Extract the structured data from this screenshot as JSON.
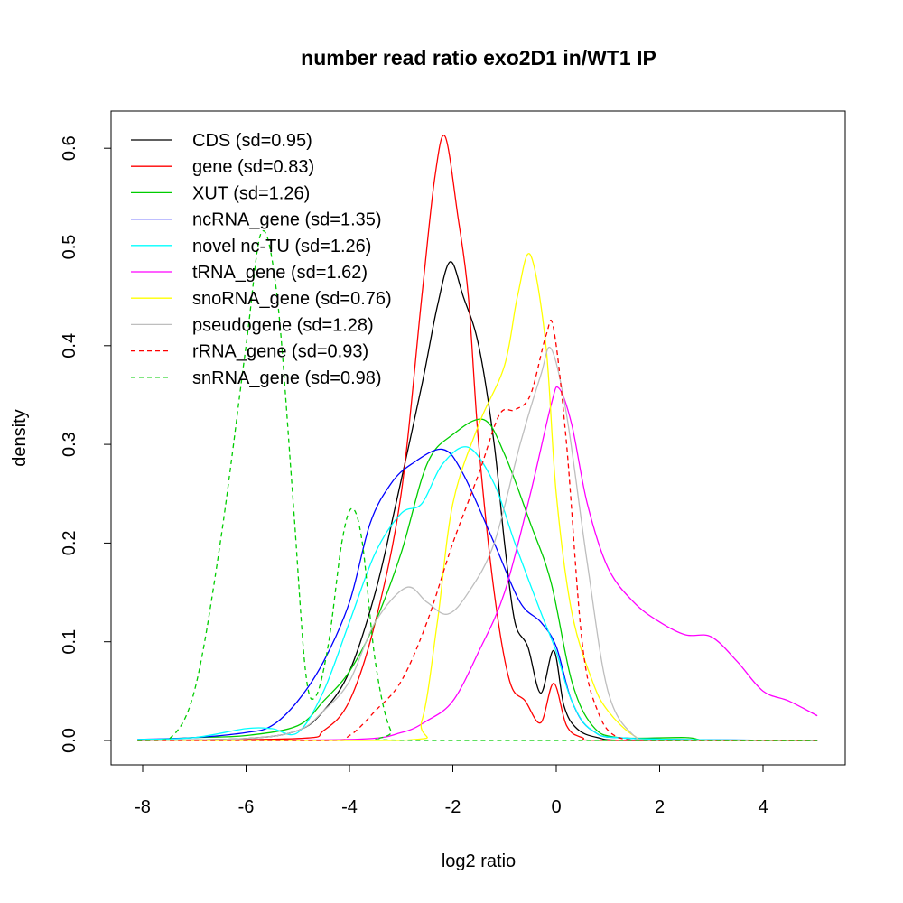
{
  "chart_data": {
    "type": "line",
    "title": "number read ratio exo2D1 in/WT1 IP",
    "xlabel": "log2 ratio",
    "ylabel": "density",
    "xlim": [
      -8.6,
      5.6
    ],
    "ylim": [
      -0.025,
      0.64
    ],
    "xticks": [
      -8,
      -6,
      -4,
      -2,
      0,
      2,
      4
    ],
    "xtick_labels": [
      "-8",
      "-6",
      "-4",
      "-2",
      "0",
      "2",
      "4"
    ],
    "yticks": [
      0,
      0.1,
      0.2,
      0.3,
      0.4,
      0.5,
      0.6
    ],
    "ytick_labels": [
      "0.0",
      "0.1",
      "0.2",
      "0.3",
      "0.4",
      "0.5",
      "0.6"
    ],
    "grid": false,
    "legend_position": "top-left",
    "series": [
      {
        "name": "CDS (sd=0.95)",
        "color": "#000000",
        "dash": false,
        "points": [
          [
            -8.1,
            0
          ],
          [
            -6,
            0.002
          ],
          [
            -5,
            0.01
          ],
          [
            -4.5,
            0.03
          ],
          [
            -4,
            0.07
          ],
          [
            -3.5,
            0.15
          ],
          [
            -3.1,
            0.24
          ],
          [
            -2.6,
            0.36
          ],
          [
            -2.3,
            0.44
          ],
          [
            -2.05,
            0.485
          ],
          [
            -1.8,
            0.45
          ],
          [
            -1.5,
            0.4
          ],
          [
            -1.2,
            0.3
          ],
          [
            -1,
            0.2
          ],
          [
            -0.8,
            0.12
          ],
          [
            -0.55,
            0.095
          ],
          [
            -0.3,
            0.048
          ],
          [
            -0.05,
            0.091
          ],
          [
            0.15,
            0.035
          ],
          [
            0.4,
            0.012
          ],
          [
            0.8,
            0.003
          ],
          [
            1.5,
            0
          ],
          [
            5.05,
            0
          ]
        ]
      },
      {
        "name": "gene (sd=0.83)",
        "color": "#ff0000",
        "dash": false,
        "points": [
          [
            -8.1,
            0
          ],
          [
            -5,
            0.002
          ],
          [
            -4.5,
            0.01
          ],
          [
            -4,
            0.04
          ],
          [
            -3.5,
            0.12
          ],
          [
            -3,
            0.25
          ],
          [
            -2.6,
            0.45
          ],
          [
            -2.35,
            0.57
          ],
          [
            -2.15,
            0.612
          ],
          [
            -1.9,
            0.53
          ],
          [
            -1.7,
            0.45
          ],
          [
            -1.5,
            0.3
          ],
          [
            -1.2,
            0.15
          ],
          [
            -0.9,
            0.06
          ],
          [
            -0.6,
            0.04
          ],
          [
            -0.3,
            0.018
          ],
          [
            -0.05,
            0.058
          ],
          [
            0.2,
            0.015
          ],
          [
            0.5,
            0.003
          ],
          [
            1,
            0
          ],
          [
            5.05,
            0
          ]
        ]
      },
      {
        "name": "XUT (sd=1.26)",
        "color": "#00cd00",
        "dash": false,
        "points": [
          [
            -8.1,
            0
          ],
          [
            -7,
            0.003
          ],
          [
            -6,
            0.005
          ],
          [
            -5,
            0.015
          ],
          [
            -4.5,
            0.04
          ],
          [
            -4,
            0.07
          ],
          [
            -3.5,
            0.12
          ],
          [
            -3,
            0.19
          ],
          [
            -2.5,
            0.28
          ],
          [
            -2,
            0.31
          ],
          [
            -1.4,
            0.325
          ],
          [
            -1,
            0.29
          ],
          [
            -0.5,
            0.22
          ],
          [
            -0.1,
            0.16
          ],
          [
            0.3,
            0.06
          ],
          [
            0.7,
            0.015
          ],
          [
            1.2,
            0.003
          ],
          [
            2.5,
            0.003
          ],
          [
            3,
            0
          ],
          [
            5.05,
            0
          ]
        ]
      },
      {
        "name": "ncRNA_gene (sd=1.35)",
        "color": "#0000ff",
        "dash": false,
        "points": [
          [
            -8.1,
            0.001
          ],
          [
            -7,
            0.003
          ],
          [
            -6,
            0.008
          ],
          [
            -5.5,
            0.015
          ],
          [
            -5,
            0.04
          ],
          [
            -4.5,
            0.08
          ],
          [
            -4,
            0.14
          ],
          [
            -3.6,
            0.22
          ],
          [
            -3.2,
            0.26
          ],
          [
            -2.8,
            0.28
          ],
          [
            -2.2,
            0.295
          ],
          [
            -1.8,
            0.27
          ],
          [
            -1.2,
            0.2
          ],
          [
            -0.7,
            0.14
          ],
          [
            -0.3,
            0.12
          ],
          [
            0,
            0.095
          ],
          [
            0.3,
            0.04
          ],
          [
            0.7,
            0.01
          ],
          [
            1.5,
            0.002
          ],
          [
            5.05,
            0
          ]
        ]
      },
      {
        "name": "novel nc-TU (sd=1.26)",
        "color": "#00ffff",
        "dash": false,
        "points": [
          [
            -8.1,
            0.001
          ],
          [
            -7,
            0.003
          ],
          [
            -6,
            0.012
          ],
          [
            -5.5,
            0.012
          ],
          [
            -5,
            0.008
          ],
          [
            -4.5,
            0.05
          ],
          [
            -4,
            0.12
          ],
          [
            -3.5,
            0.19
          ],
          [
            -3,
            0.23
          ],
          [
            -2.6,
            0.24
          ],
          [
            -2.2,
            0.28
          ],
          [
            -1.7,
            0.297
          ],
          [
            -1.2,
            0.26
          ],
          [
            -0.8,
            0.2
          ],
          [
            -0.3,
            0.13
          ],
          [
            0,
            0.09
          ],
          [
            0.3,
            0.04
          ],
          [
            0.7,
            0.01
          ],
          [
            1.5,
            0.002
          ],
          [
            5.05,
            0
          ]
        ]
      },
      {
        "name": "tRNA_gene (sd=1.62)",
        "color": "#ff00ff",
        "dash": false,
        "points": [
          [
            -8.1,
            0
          ],
          [
            -4,
            0.001
          ],
          [
            -3,
            0.008
          ],
          [
            -2.5,
            0.02
          ],
          [
            -2,
            0.04
          ],
          [
            -1.5,
            0.09
          ],
          [
            -1,
            0.15
          ],
          [
            -0.5,
            0.25
          ],
          [
            -0.1,
            0.34
          ],
          [
            0.05,
            0.357
          ],
          [
            0.3,
            0.32
          ],
          [
            0.6,
            0.24
          ],
          [
            1,
            0.175
          ],
          [
            1.5,
            0.14
          ],
          [
            2,
            0.12
          ],
          [
            2.5,
            0.107
          ],
          [
            3,
            0.105
          ],
          [
            3.5,
            0.08
          ],
          [
            4,
            0.05
          ],
          [
            4.5,
            0.04
          ],
          [
            5.05,
            0.025
          ]
        ]
      },
      {
        "name": "snoRNA_gene (sd=0.76)",
        "color": "#ffff00",
        "dash": false,
        "points": [
          [
            -8.1,
            0
          ],
          [
            -3,
            0
          ],
          [
            -2.6,
            0.02
          ],
          [
            -2.3,
            0.12
          ],
          [
            -2,
            0.24
          ],
          [
            -1.5,
            0.32
          ],
          [
            -1,
            0.38
          ],
          [
            -0.75,
            0.45
          ],
          [
            -0.5,
            0.492
          ],
          [
            -0.2,
            0.4
          ],
          [
            0,
            0.25
          ],
          [
            0.3,
            0.13
          ],
          [
            0.7,
            0.06
          ],
          [
            1,
            0.03
          ],
          [
            1.5,
            0.005
          ],
          [
            2,
            0
          ],
          [
            5.05,
            0
          ]
        ]
      },
      {
        "name": "pseudogene (sd=1.28)",
        "color": "#bebebe",
        "dash": false,
        "points": [
          [
            -8.1,
            0
          ],
          [
            -6,
            0.002
          ],
          [
            -5,
            0.01
          ],
          [
            -4.5,
            0.03
          ],
          [
            -4,
            0.06
          ],
          [
            -3.5,
            0.12
          ],
          [
            -2.9,
            0.155
          ],
          [
            -2.5,
            0.14
          ],
          [
            -2.1,
            0.128
          ],
          [
            -1.7,
            0.15
          ],
          [
            -1.2,
            0.2
          ],
          [
            -0.7,
            0.3
          ],
          [
            -0.3,
            0.37
          ],
          [
            -0.1,
            0.397
          ],
          [
            0.2,
            0.33
          ],
          [
            0.6,
            0.18
          ],
          [
            1,
            0.05
          ],
          [
            1.5,
            0.005
          ],
          [
            2,
            0
          ],
          [
            5.05,
            0
          ]
        ]
      },
      {
        "name": "rRNA_gene (sd=0.93)",
        "color": "#ff0000",
        "dash": true,
        "points": [
          [
            -8.1,
            0
          ],
          [
            -4.5,
            0
          ],
          [
            -4,
            0.005
          ],
          [
            -3.5,
            0.03
          ],
          [
            -3,
            0.06
          ],
          [
            -2.5,
            0.12
          ],
          [
            -2,
            0.2
          ],
          [
            -1.5,
            0.27
          ],
          [
            -1.1,
            0.33
          ],
          [
            -0.8,
            0.335
          ],
          [
            -0.5,
            0.35
          ],
          [
            -0.2,
            0.41
          ],
          [
            -0.05,
            0.417
          ],
          [
            0.2,
            0.3
          ],
          [
            0.5,
            0.1
          ],
          [
            0.8,
            0.03
          ],
          [
            1.2,
            0.003
          ],
          [
            2,
            0
          ],
          [
            5.05,
            0
          ]
        ]
      },
      {
        "name": "snRNA_gene (sd=0.98)",
        "color": "#00cd00",
        "dash": true,
        "points": [
          [
            -8.1,
            0
          ],
          [
            -7.5,
            0.001
          ],
          [
            -7,
            0.05
          ],
          [
            -6.5,
            0.2
          ],
          [
            -6,
            0.4
          ],
          [
            -5.7,
            0.515
          ],
          [
            -5.4,
            0.45
          ],
          [
            -5.1,
            0.25
          ],
          [
            -4.85,
            0.07
          ],
          [
            -4.65,
            0.045
          ],
          [
            -4.4,
            0.1
          ],
          [
            -4.15,
            0.2
          ],
          [
            -3.95,
            0.235
          ],
          [
            -3.75,
            0.2
          ],
          [
            -3.5,
            0.08
          ],
          [
            -3.2,
            0.01
          ],
          [
            -2.8,
            0
          ],
          [
            5.05,
            0
          ]
        ]
      }
    ]
  }
}
